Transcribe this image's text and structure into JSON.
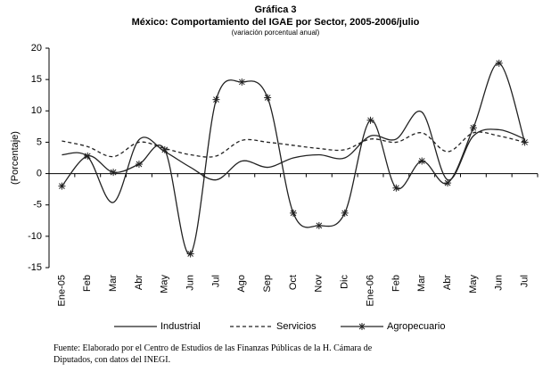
{
  "chart_data": {
    "type": "line",
    "title": "Gráfica 3",
    "subtitle": "México: Comportamiento del IGAE  por Sector, 2005-2006/julio",
    "subtitle2": "(variación porcentual anual)",
    "ylabel": "(Porcentaje)",
    "categories": [
      "Ene-05",
      "Feb",
      "Mar",
      "Abr",
      "May",
      "Jun",
      "Jul",
      "Ago",
      "Sep",
      "Oct",
      "Nov",
      "Dic",
      "Ene-06",
      "Feb",
      "Mar",
      "Abr",
      "May",
      "Jun",
      "Jul"
    ],
    "series": [
      {
        "name": "Industrial",
        "color": "#222222",
        "line_style": "solid",
        "marker": "none",
        "values": [
          3,
          2.7,
          -4.6,
          5.4,
          3.5,
          1,
          -1,
          2,
          1,
          2.5,
          3,
          2.5,
          6,
          5.5,
          9.8,
          -1,
          6,
          7,
          5.5
        ]
      },
      {
        "name": "Servicios",
        "color": "#222222",
        "line_style": "dashed",
        "marker": "none",
        "values": [
          5.2,
          4.3,
          2.7,
          5,
          4,
          3,
          2.8,
          5.3,
          5,
          4.5,
          4,
          3.8,
          5.5,
          5,
          6.5,
          3.5,
          6.5,
          6,
          5
        ]
      },
      {
        "name": "Agropecuario",
        "color": "#222222",
        "line_style": "solid",
        "marker": "asterisk",
        "values": [
          -2,
          2.8,
          0.2,
          1.5,
          3.8,
          -12.8,
          11.8,
          14.6,
          12.1,
          -6.3,
          -8.3,
          -6.3,
          8.5,
          -2.3,
          2,
          -1.5,
          7.3,
          17.6,
          5
        ]
      }
    ],
    "ylim": [
      -15,
      20
    ],
    "yticks": [
      -15,
      -10,
      -5,
      0,
      5,
      10,
      15,
      20
    ],
    "smooth": true,
    "notes": [
      "Fuente: Elaborado por el Centro de Estudios de las Finanzas Públicas de la H. Cámara de",
      "Diputados, con datos del INEGI."
    ]
  }
}
